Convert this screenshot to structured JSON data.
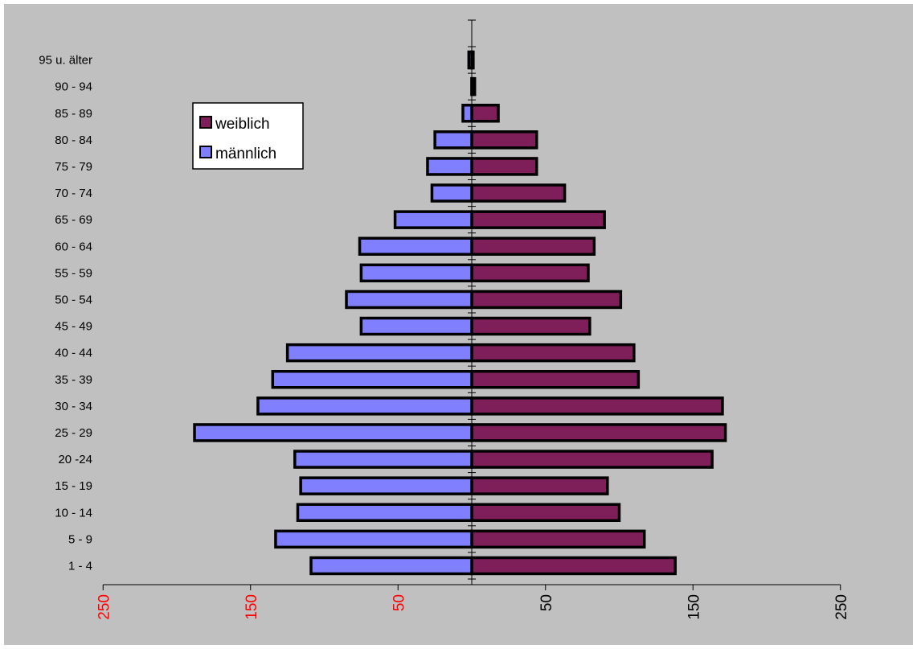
{
  "chart_data": {
    "type": "bar",
    "orientation": "horizontal",
    "categories": [
      "1 - 4",
      "5 - 9",
      "10 - 14",
      "15 - 19",
      "20 -24",
      "25 - 29",
      "30 - 34",
      "35 - 39",
      "40 - 44",
      "45 - 49",
      "50 - 54",
      "55 - 59",
      "60 - 64",
      "65 - 69",
      "70 - 74",
      "75 - 79",
      "80 - 84",
      "85 - 89",
      "90 - 94",
      "95 u. älter"
    ],
    "series": [
      {
        "name": "weiblich",
        "color": "#7f1f5a",
        "side": "right",
        "values": [
          138,
          117,
          100,
          92,
          163,
          172,
          170,
          113,
          110,
          80,
          101,
          79,
          83,
          90,
          63,
          44,
          44,
          18,
          2,
          1
        ]
      },
      {
        "name": "männlich",
        "color": "#8080ff",
        "side": "left",
        "values": [
          109,
          133,
          118,
          116,
          120,
          188,
          145,
          135,
          125,
          75,
          85,
          75,
          76,
          52,
          27,
          30,
          25,
          6,
          0,
          2
        ]
      }
    ],
    "xlim": [
      -250,
      250
    ],
    "x_ticks": [
      {
        "value": -250,
        "label": "250",
        "color": "#ff0000"
      },
      {
        "value": -150,
        "label": "150",
        "color": "#ff0000"
      },
      {
        "value": -50,
        "label": "50",
        "color": "#ff0000"
      },
      {
        "value": 50,
        "label": "50",
        "color": "#000000"
      },
      {
        "value": 150,
        "label": "150",
        "color": "#000000"
      },
      {
        "value": 250,
        "label": "250",
        "color": "#000000"
      }
    ],
    "title": "",
    "xlabel": "",
    "ylabel": "",
    "legend": {
      "position": "top-left",
      "entries": [
        "weiblich",
        "männlich"
      ]
    },
    "grid": false,
    "background_color": "#c0c0c0"
  }
}
